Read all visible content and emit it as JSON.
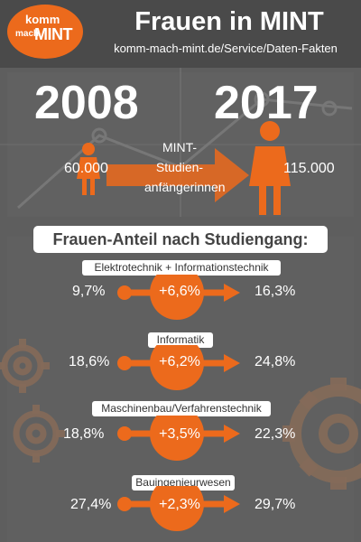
{
  "header": {
    "logo_line1": "komm",
    "logo_line2": "mach",
    "logo_line3": "MINT",
    "title": "Frauen in MINT",
    "subtitle": "komm-mach-mint.de/Service/Daten-Fakten"
  },
  "comparison": {
    "year_left": "2008",
    "year_right": "2017",
    "value_left": "60.000",
    "value_right": "115.000",
    "center_label_line1": "MINT-",
    "center_label_line2": "Studien-",
    "center_label_line3": "anfängerinnen"
  },
  "section": {
    "title": "Frauen-Anteil nach Studiengang:"
  },
  "courses": [
    {
      "label": "Elektrotechnik + Informationstechnik",
      "from": "9,7%",
      "change": "+6,6%",
      "to": "16,3%"
    },
    {
      "label": "Informatik",
      "from": "18,6%",
      "change": "+6,2%",
      "to": "24,8%"
    },
    {
      "label": "Maschinenbau/Verfahrenstechnik",
      "from": "18,8%",
      "change": "+3,5%",
      "to": "22,3%"
    },
    {
      "label": "Bauingenieurwesen",
      "from": "27,4%",
      "change": "+2,3%",
      "to": "29,7%"
    }
  ],
  "colors": {
    "accent": "#ec6a1c",
    "background": "#5e5e5e",
    "header_bg": "#4a4a4a"
  },
  "icons": [
    "female-figure-icon",
    "arrow-right-icon",
    "gear-icon"
  ]
}
